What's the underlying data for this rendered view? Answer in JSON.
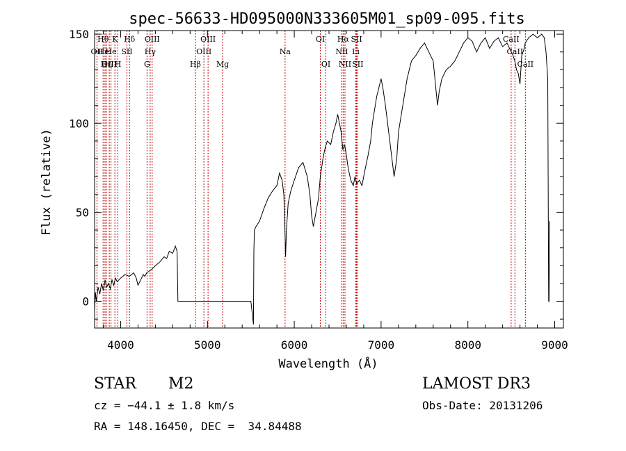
{
  "chart_data": {
    "type": "line",
    "title": "spec-56633-HD095000N333605M01_sp09-095.fits",
    "xlabel": "Wavelength (Å)",
    "ylabel": "Flux (relative)",
    "xlim": [
      3700,
      9100
    ],
    "ylim": [
      -15,
      152
    ],
    "x_ticks": [
      4000,
      5000,
      6000,
      7000,
      8000,
      9000
    ],
    "y_ticks": [
      0,
      50,
      100,
      150
    ],
    "grid": false,
    "series": [
      {
        "x": [
          3700,
          3710,
          3720,
          3740,
          3760,
          3780,
          3800,
          3820,
          3840,
          3860,
          3880,
          3900,
          3920,
          3940,
          3960,
          3980,
          4000,
          4050,
          4100,
          4150,
          4180,
          4200,
          4230,
          4260,
          4280,
          4300,
          4330,
          4360,
          4400,
          4450,
          4500,
          4530,
          4560,
          4600,
          4630,
          4650,
          4660,
          4700,
          5000,
          5500,
          5530,
          5535,
          5540,
          5560,
          5600,
          5650,
          5700,
          5750,
          5800,
          5830,
          5860,
          5880,
          5895,
          5900,
          5910,
          5930,
          5960,
          6000,
          6050,
          6100,
          6150,
          6180,
          6200,
          6220,
          6250,
          6280,
          6300,
          6330,
          6350,
          6380,
          6420,
          6450,
          6480,
          6500,
          6520,
          6540,
          6550,
          6560,
          6580,
          6600,
          6620,
          6650,
          6680,
          6700,
          6720,
          6750,
          6780,
          6800,
          6820,
          6850,
          6880,
          6900,
          6950,
          7000,
          7020,
          7050,
          7100,
          7150,
          7180,
          7200,
          7250,
          7300,
          7350,
          7400,
          7450,
          7500,
          7550,
          7600,
          7630,
          7650,
          7670,
          7700,
          7750,
          7800,
          7850,
          7900,
          7950,
          8000,
          8050,
          8100,
          8150,
          8200,
          8250,
          8300,
          8350,
          8400,
          8450,
          8500,
          8520,
          8540,
          8560,
          8580,
          8600,
          8620,
          8650,
          8660,
          8700,
          8750,
          8800,
          8850,
          8880,
          8900,
          8920,
          8930,
          8935,
          8940
        ],
        "y": [
          -5,
          5,
          0,
          8,
          4,
          10,
          6,
          12,
          8,
          10,
          7,
          12,
          9,
          13,
          11,
          12,
          13,
          15,
          14,
          16,
          13,
          9,
          12,
          15,
          14,
          16,
          17,
          18,
          20,
          22,
          25,
          24,
          28,
          27,
          31,
          28,
          0,
          0,
          0,
          0,
          -13,
          28,
          40,
          42,
          45,
          52,
          58,
          62,
          65,
          72,
          68,
          60,
          35,
          25,
          40,
          55,
          62,
          68,
          75,
          78,
          70,
          60,
          48,
          42,
          50,
          58,
          70,
          80,
          85,
          90,
          88,
          95,
          100,
          105,
          100,
          95,
          90,
          85,
          88,
          82,
          75,
          68,
          65,
          70,
          66,
          68,
          65,
          70,
          75,
          82,
          90,
          100,
          115,
          125,
          120,
          110,
          90,
          70,
          80,
          95,
          110,
          125,
          135,
          138,
          142,
          145,
          140,
          135,
          120,
          110,
          118,
          125,
          130,
          132,
          135,
          140,
          145,
          148,
          146,
          140,
          145,
          148,
          142,
          146,
          148,
          143,
          145,
          140,
          138,
          135,
          130,
          128,
          122,
          138,
          142,
          145,
          148,
          150,
          148,
          150,
          148,
          140,
          125,
          0,
          0,
          45
        ]
      }
    ],
    "lines": [
      {
        "label": "Hθ",
        "x": 3798,
        "row": 1
      },
      {
        "label": "OII",
        "x": 3727,
        "row": 2
      },
      {
        "label": "OIII",
        "x": 3869,
        "row": 3
      },
      {
        "label": "He",
        "x": 3889,
        "row": 2
      },
      {
        "label": "K",
        "x": 3934,
        "row": 1
      },
      {
        "label": "Hη",
        "x": 3835,
        "row": 3
      },
      {
        "label": "HeI",
        "x": 3820,
        "row": 2
      },
      {
        "label": "H",
        "x": 3968,
        "row": 3
      },
      {
        "label": "SII",
        "x": 4072,
        "row": 2
      },
      {
        "label": "Hδ",
        "x": 4102,
        "row": 1
      },
      {
        "label": "OIII",
        "x": 4363,
        "row": 1
      },
      {
        "label": "Hγ",
        "x": 4340,
        "row": 2
      },
      {
        "label": "G",
        "x": 4304,
        "row": 3
      },
      {
        "label": "Hβ",
        "x": 4861,
        "row": 3
      },
      {
        "label": "OIII",
        "x": 5007,
        "row": 1
      },
      {
        "label": "OIII",
        "x": 4959,
        "row": 2
      },
      {
        "label": "Mg",
        "x": 5175,
        "row": 3
      },
      {
        "label": "Na",
        "x": 5894,
        "row": 2
      },
      {
        "label": "OI",
        "x": 6300,
        "row": 1
      },
      {
        "label": "OI",
        "x": 6364,
        "row": 3
      },
      {
        "label": "Hα",
        "x": 6563,
        "row": 1
      },
      {
        "label": "NII",
        "x": 6548,
        "row": 2
      },
      {
        "label": "NII",
        "x": 6584,
        "row": 3
      },
      {
        "label": "SII",
        "x": 6717,
        "row": 1
      },
      {
        "label": "Li",
        "x": 6708,
        "row": 2
      },
      {
        "label": "SII",
        "x": 6731,
        "row": 3
      },
      {
        "label": "CaII",
        "x": 8498,
        "row": 1
      },
      {
        "label": "CaII",
        "x": 8542,
        "row": 2
      },
      {
        "label": "CaII",
        "x": 8662,
        "row": 3
      }
    ]
  },
  "info": {
    "class_label": "STAR",
    "subclass": "M2",
    "survey": "LAMOST DR3",
    "cz": "cz = −44.1 ± 1.8 km/s",
    "obs_date": "Obs-Date: 20131206",
    "coords": "RA = 148.16450, DEC =  34.84488"
  },
  "colors": {
    "axis": "#000000",
    "spectrum": "#000000",
    "lines": "#c00000"
  }
}
